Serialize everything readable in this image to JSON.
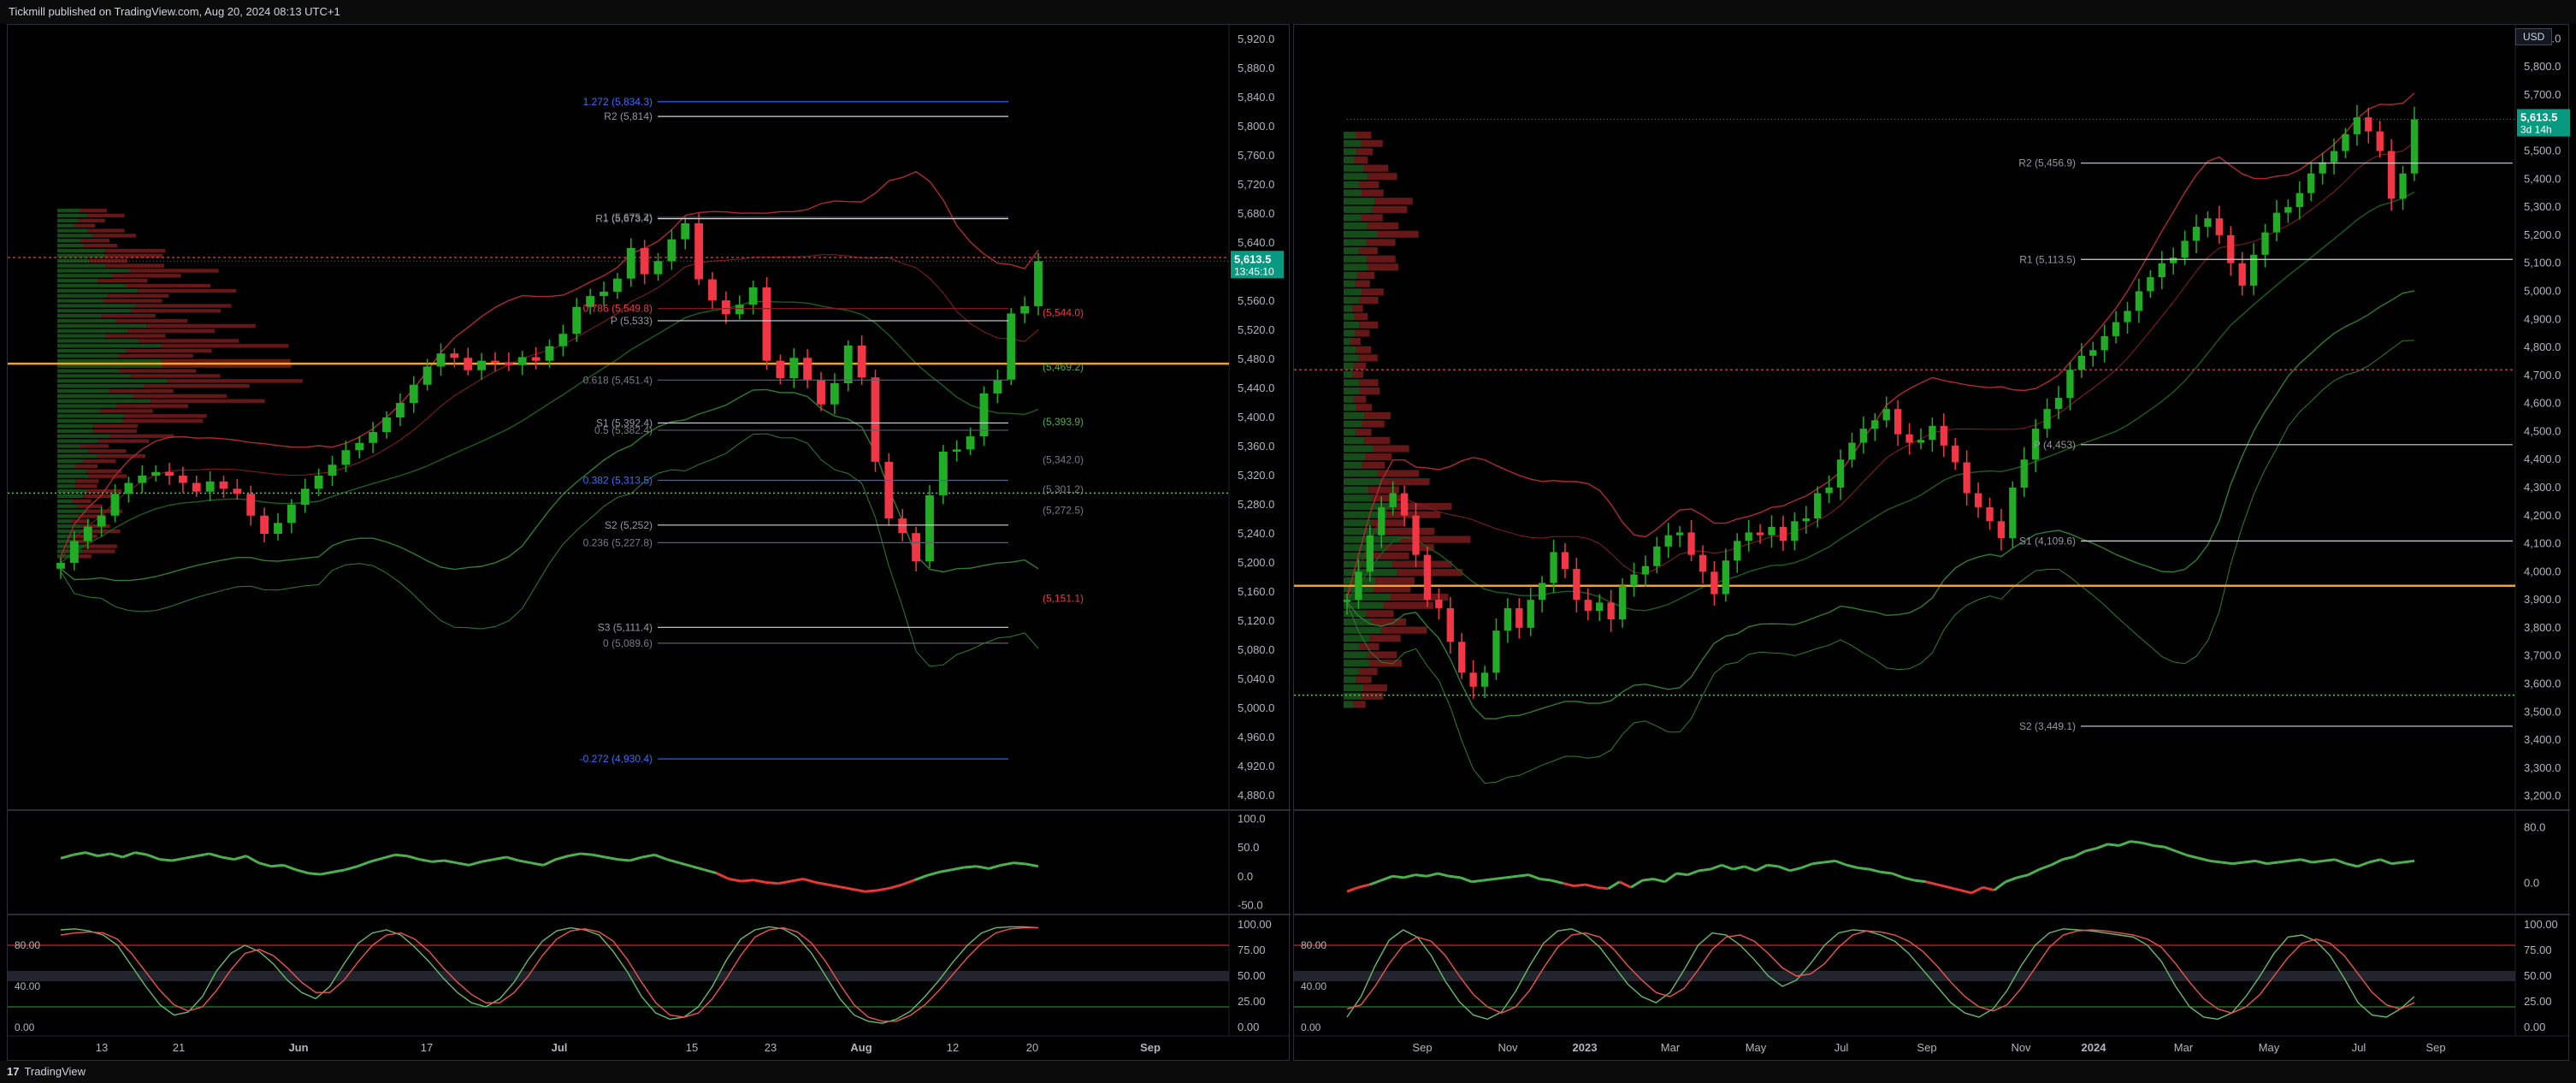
{
  "header": {
    "text": "Tickmill published on TradingView.com, Aug 20, 2024 08:13 UTC+1"
  },
  "footer": {
    "brand": "TradingView",
    "logo_icon": "tradingview-logo-icon"
  },
  "colors": {
    "up": "#26a69a",
    "up_fill": "#22ab24",
    "down": "#f23645",
    "bb_upper": "#b22833",
    "bb_lower": "#2e7d32",
    "fib": "#2962ff",
    "orange": "#f7a21b",
    "price_tag": "#089981"
  },
  "chart_data": [
    {
      "type": "candlestick",
      "title": "",
      "timeframe": "daily",
      "x_ticks": [
        "13",
        "21",
        "Jun",
        "17",
        "Jul",
        "15",
        "23",
        "Aug",
        "12",
        "20",
        "Sep"
      ],
      "y_ticks": [
        "5,920.0",
        "5,880.0",
        "5,840.0",
        "5,800.0",
        "5,760.0",
        "5,720.0",
        "5,680.0",
        "5,640.0",
        "5,600.0",
        "5,560.0",
        "5,520.0",
        "5,480.0",
        "5,440.0",
        "5,400.0",
        "5,360.0",
        "5,320.0",
        "5,280.0",
        "5,240.0",
        "5,200.0",
        "5,160.0",
        "5,120.0",
        "5,080.0",
        "5,040.0",
        "5,000.0",
        "4,960.0",
        "4,920.0",
        "4,880.0"
      ],
      "ylim": [
        4860,
        5940
      ],
      "last_price": "5,613.5",
      "countdown": "13:45:10",
      "closes": [
        5200,
        5230,
        5250,
        5265,
        5295,
        5310,
        5320,
        5325,
        5320,
        5310,
        5298,
        5312,
        5302,
        5295,
        5265,
        5240,
        5255,
        5280,
        5302,
        5320,
        5335,
        5355,
        5365,
        5380,
        5400,
        5420,
        5445,
        5470,
        5488,
        5482,
        5465,
        5478,
        5476,
        5472,
        5483,
        5478,
        5498,
        5515,
        5552,
        5567,
        5573,
        5591,
        5633,
        5597,
        5615,
        5645,
        5667,
        5590,
        5561,
        5542,
        5555,
        5579,
        5478,
        5454,
        5482,
        5452,
        5418,
        5447,
        5499,
        5455,
        5339,
        5261,
        5241,
        5202,
        5293,
        5353,
        5356,
        5374,
        5433,
        5452,
        5543,
        5553,
        5615
      ],
      "levels": [
        {
          "label": "1.272 (5,834.3)",
          "y": 5834.3,
          "style": "fib"
        },
        {
          "label": "R2 (5,814)",
          "y": 5814,
          "style": "pivot"
        },
        {
          "label": "1 (5,675.2)",
          "y": 5675.2,
          "style": "fibgray"
        },
        {
          "label": "R1 (5,673.4)",
          "y": 5673.4,
          "style": "pivot"
        },
        {
          "label": "0.786 (5,549.8)",
          "y": 5549.8,
          "style": "fibred"
        },
        {
          "label": "P (5,533)",
          "y": 5533,
          "style": "pivot"
        },
        {
          "label": "0.618 (5,451.4)",
          "y": 5451.4,
          "style": "fibgray"
        },
        {
          "label": "S1 (5,392.4)",
          "y": 5392.4,
          "style": "pivot"
        },
        {
          "label": "0.5 (5,382.4)",
          "y": 5382.4,
          "style": "fibgray"
        },
        {
          "label": "0.382 (5,313.5)",
          "y": 5313.5,
          "style": "fib"
        },
        {
          "label": "S2 (5,252)",
          "y": 5252,
          "style": "pivot"
        },
        {
          "label": "0.236 (5,227.8)",
          "y": 5227.8,
          "style": "fibgray"
        },
        {
          "label": "S3 (5,111.4)",
          "y": 5111.4,
          "style": "pivot"
        },
        {
          "label": "0 (5,089.6)",
          "y": 5089.6,
          "style": "fibgray"
        },
        {
          "label": "-0.272 (4,930.4)",
          "y": 4930.4,
          "style": "fib"
        }
      ],
      "right_labels": [
        {
          "label": "(5,544.0)",
          "y": 5544,
          "style": "red"
        },
        {
          "label": "(5,469.2)",
          "y": 5469.2,
          "style": "green"
        },
        {
          "label": "(5,393.9)",
          "y": 5393.9,
          "style": "green"
        },
        {
          "label": "(5,342.0)",
          "y": 5342,
          "style": "gray"
        },
        {
          "label": "(5,301.2)",
          "y": 5301.2,
          "style": "gray"
        },
        {
          "label": "(5,272.5)",
          "y": 5272.5,
          "style": "gray"
        },
        {
          "label": "(5,151.1)",
          "y": 5151.1,
          "style": "red"
        }
      ],
      "rsi_ticks": [
        "100.0",
        "50.0",
        "0.0",
        "-50.0"
      ],
      "rsi": [
        32,
        38,
        42,
        36,
        40,
        34,
        42,
        38,
        30,
        28,
        32,
        36,
        40,
        34,
        30,
        36,
        24,
        18,
        20,
        12,
        6,
        4,
        8,
        12,
        18,
        26,
        32,
        38,
        36,
        30,
        26,
        28,
        24,
        20,
        26,
        30,
        34,
        28,
        24,
        20,
        30,
        36,
        40,
        38,
        34,
        30,
        28,
        34,
        38,
        30,
        24,
        18,
        12,
        6,
        -4,
        -8,
        -6,
        -10,
        -12,
        -8,
        -4,
        -10,
        -14,
        -18,
        -22,
        -26,
        -24,
        -20,
        -14,
        -6,
        2,
        8,
        12,
        16,
        18,
        14,
        20,
        24,
        22,
        18
      ],
      "stoch_ticks": [
        "100.00",
        "75.00",
        "50.00",
        "25.00",
        "0.00"
      ],
      "stoch_left_ticks": [
        "80.00",
        "40.00",
        "0.00"
      ],
      "stoch_k": [
        95,
        96,
        94,
        90,
        80,
        60,
        40,
        22,
        12,
        15,
        30,
        55,
        72,
        80,
        74,
        62,
        46,
        34,
        28,
        40,
        62,
        82,
        92,
        95,
        90,
        78,
        64,
        48,
        34,
        24,
        20,
        28,
        44,
        66,
        84,
        94,
        97,
        95,
        90,
        74,
        54,
        30,
        14,
        8,
        10,
        20,
        40,
        66,
        86,
        95,
        98,
        96,
        88,
        72,
        50,
        28,
        12,
        6,
        4,
        8,
        16,
        30,
        46,
        64,
        80,
        92,
        97,
        98,
        98,
        97
      ],
      "stoch_d": [
        90,
        92,
        93,
        92,
        86,
        72,
        54,
        36,
        22,
        16,
        20,
        36,
        56,
        72,
        76,
        70,
        58,
        44,
        34,
        34,
        46,
        64,
        80,
        90,
        92,
        86,
        74,
        58,
        44,
        32,
        24,
        24,
        34,
        50,
        70,
        86,
        94,
        96,
        93,
        84,
        66,
        44,
        24,
        12,
        10,
        14,
        28,
        48,
        70,
        88,
        95,
        97,
        93,
        82,
        64,
        42,
        22,
        10,
        6,
        6,
        12,
        22,
        36,
        52,
        68,
        82,
        92,
        96,
        97,
        97
      ]
    },
    {
      "type": "candlestick",
      "title": "",
      "timeframe": "weekly",
      "currency": "USD",
      "x_ticks": [
        "Sep",
        "Nov",
        "2023",
        "Mar",
        "May",
        "Jul",
        "Sep",
        "Nov",
        "2024",
        "Mar",
        "May",
        "Jul",
        "Sep"
      ],
      "y_ticks": [
        "5,900.0",
        "5,800.0",
        "5,700.0",
        "5,600.0",
        "5,500.0",
        "5,400.0",
        "5,300.0",
        "5,200.0",
        "5,100.0",
        "5,000.0",
        "4,900.0",
        "4,800.0",
        "4,700.0",
        "4,600.0",
        "4,500.0",
        "4,400.0",
        "4,300.0",
        "4,200.0",
        "4,100.0",
        "4,000.0",
        "3,900.0",
        "3,800.0",
        "3,700.0",
        "3,600.0",
        "3,500.0",
        "3,400.0",
        "3,300.0",
        "3,200.0"
      ],
      "ylim": [
        3150,
        5950
      ],
      "last_price": "5,613.5",
      "countdown": "3d 14h",
      "closes": [
        3900,
        4000,
        4130,
        4230,
        4280,
        4200,
        4060,
        3900,
        3870,
        3750,
        3640,
        3590,
        3640,
        3790,
        3870,
        3800,
        3900,
        3960,
        4070,
        4010,
        3900,
        3860,
        3890,
        3830,
        3950,
        3990,
        4020,
        4090,
        4130,
        4140,
        4060,
        4000,
        3920,
        4040,
        4110,
        4140,
        4130,
        4160,
        4110,
        4180,
        4190,
        4280,
        4300,
        4400,
        4460,
        4510,
        4540,
        4580,
        4490,
        4460,
        4470,
        4520,
        4450,
        4390,
        4280,
        4230,
        4180,
        4120,
        4300,
        4400,
        4510,
        4580,
        4620,
        4720,
        4770,
        4790,
        4840,
        4890,
        4930,
        5000,
        5050,
        5100,
        5120,
        5180,
        5230,
        5260,
        5200,
        5100,
        5020,
        5130,
        5210,
        5280,
        5300,
        5350,
        5420,
        5460,
        5500,
        5560,
        5620,
        5570,
        5500,
        5330,
        5420,
        5613
      ],
      "levels": [
        {
          "label": "R2 (5,456.9)",
          "y": 5456.9,
          "style": "pivot"
        },
        {
          "label": "R1 (5,113.5)",
          "y": 5113.5,
          "style": "pivot"
        },
        {
          "label": "P (4,453)",
          "y": 4453,
          "style": "pivot"
        },
        {
          "label": "S1 (4,109.6)",
          "y": 4109.6,
          "style": "pivot"
        },
        {
          "label": "S2 (3,449.1)",
          "y": 3449.1,
          "style": "pivot"
        }
      ],
      "rsi_ticks": [
        "80.0",
        "0.0"
      ],
      "rsi": [
        -12,
        -6,
        -2,
        4,
        10,
        8,
        12,
        10,
        14,
        10,
        8,
        2,
        4,
        6,
        8,
        10,
        12,
        6,
        4,
        0,
        -4,
        -2,
        -6,
        -8,
        2,
        -6,
        4,
        6,
        2,
        14,
        12,
        18,
        20,
        26,
        20,
        24,
        18,
        26,
        24,
        18,
        22,
        28,
        30,
        32,
        26,
        22,
        20,
        16,
        14,
        8,
        4,
        2,
        -2,
        -6,
        -10,
        -14,
        -6,
        -10,
        2,
        8,
        12,
        20,
        26,
        34,
        38,
        46,
        50,
        56,
        54,
        60,
        58,
        54,
        52,
        46,
        40,
        36,
        32,
        30,
        28,
        30,
        32,
        28,
        30,
        32,
        34,
        30,
        32,
        34,
        28,
        24,
        30,
        34,
        28,
        30,
        32
      ],
      "stoch_ticks": [
        "100.00",
        "75.00",
        "50.00",
        "25.00",
        "0.00"
      ],
      "stoch_left_ticks": [
        "80.00",
        "40.00",
        "0.00"
      ],
      "stoch_k": [
        10,
        30,
        60,
        85,
        95,
        88,
        70,
        45,
        25,
        12,
        8,
        15,
        35,
        60,
        82,
        94,
        96,
        90,
        78,
        60,
        42,
        30,
        24,
        34,
        56,
        80,
        92,
        90,
        80,
        66,
        50,
        40,
        46,
        62,
        80,
        92,
        95,
        94,
        90,
        84,
        72,
        56,
        40,
        24,
        14,
        10,
        18,
        36,
        60,
        80,
        92,
        96,
        95,
        94,
        92,
        90,
        88,
        80,
        64,
        40,
        20,
        10,
        8,
        14,
        30,
        50,
        72,
        88,
        90,
        84,
        70,
        48,
        24,
        12,
        10,
        18,
        30
      ],
      "stoch_d": [
        18,
        22,
        40,
        62,
        80,
        88,
        84,
        70,
        50,
        32,
        20,
        14,
        20,
        36,
        58,
        78,
        90,
        92,
        88,
        76,
        60,
        46,
        34,
        30,
        38,
        56,
        76,
        88,
        90,
        84,
        72,
        58,
        50,
        52,
        62,
        78,
        90,
        94,
        93,
        90,
        84,
        74,
        60,
        44,
        30,
        20,
        16,
        22,
        38,
        58,
        78,
        90,
        94,
        95,
        94,
        92,
        90,
        86,
        78,
        62,
        44,
        28,
        18,
        14,
        20,
        32,
        50,
        68,
        82,
        86,
        82,
        70,
        52,
        34,
        22,
        18,
        24
      ]
    }
  ]
}
